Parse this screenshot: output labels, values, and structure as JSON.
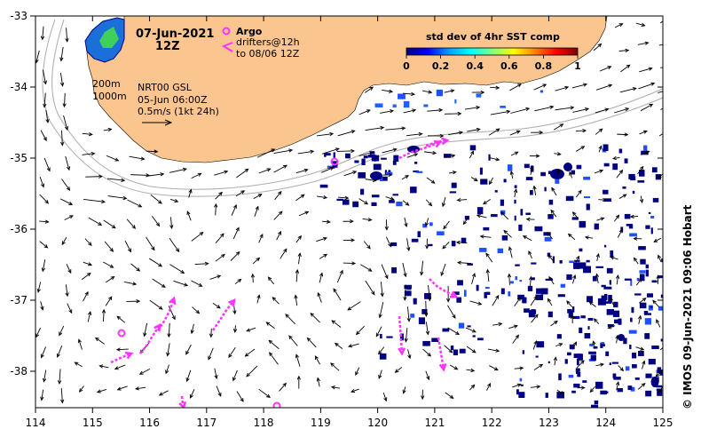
{
  "map": {
    "date": "07-Jun-2021",
    "hour": "12Z",
    "argo_label": "Argo",
    "drifters_line1": "drifters@12h",
    "drifters_line2": "to 08/06 12Z",
    "depth_200": "200m",
    "depth_1000": "1000m",
    "product": "NRT00 GSL",
    "product_time": "05-Jun 06:00Z",
    "vector_scale": "0.5m/s (1kt 24h)",
    "credit": "© IMOS 09-Jun-2021 09:06 Hobart",
    "colorbar": {
      "title": "std dev of 4hr SST comp",
      "ticks": [
        "0",
        "0.2",
        "0.4",
        "0.6",
        "0.8",
        "1"
      ],
      "stops": [
        "#000080",
        "#0000ff",
        "#00a0ff",
        "#00ffff",
        "#80ff80",
        "#ffff00",
        "#ff8000",
        "#ff0000",
        "#800000"
      ]
    },
    "lon_ticks": [
      "114",
      "115",
      "116",
      "117",
      "118",
      "119",
      "120",
      "121",
      "122",
      "123",
      "124",
      "125"
    ],
    "lat_ticks": [
      "-33",
      "-34",
      "-35",
      "-36",
      "-37",
      "-38"
    ],
    "colors": {
      "land": "#fbc590",
      "arrows": "#000000",
      "drifters": "#ff33ff",
      "isobath": "#b0b0b0"
    }
  }
}
